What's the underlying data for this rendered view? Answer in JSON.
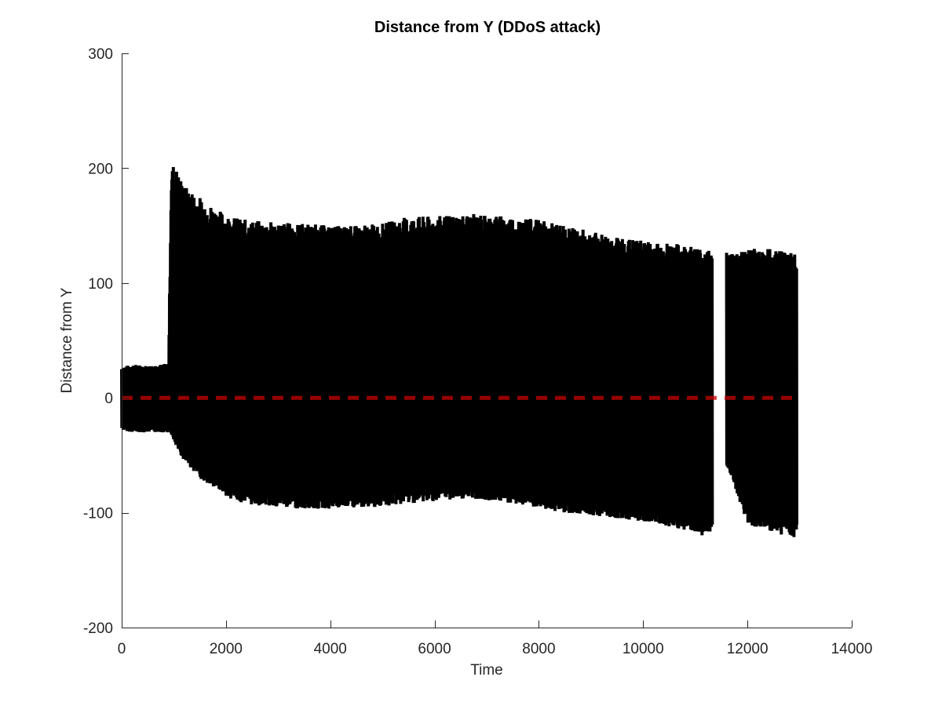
{
  "chart_data": {
    "type": "line",
    "title": "Distance from Y (DDoS attack)",
    "xlabel": "Time",
    "ylabel": "Distance from Y",
    "xlim": [
      0,
      14000
    ],
    "ylim": [
      -200,
      300
    ],
    "xticks": [
      0,
      2000,
      4000,
      6000,
      8000,
      10000,
      12000,
      14000
    ],
    "yticks": [
      -200,
      -100,
      0,
      100,
      200,
      300
    ],
    "xtick_labels": [
      "0",
      "2000",
      "4000",
      "6000",
      "8000",
      "10000",
      "12000",
      "14000"
    ],
    "ytick_labels": [
      "-200",
      "-100",
      "0",
      "100",
      "200",
      "300"
    ],
    "grid": false,
    "series": [
      {
        "style": "solid",
        "color": "#000000",
        "envelope_x": [
          0,
          200,
          500,
          900,
          950,
          1000,
          1200,
          1500,
          1800,
          2100,
          2400,
          3000,
          3500,
          4000,
          4500,
          5000,
          5500,
          6000,
          6500,
          7000,
          7500,
          8000,
          8500,
          9000,
          9500,
          10000,
          10500,
          11000,
          11300,
          11330,
          11600,
          11650,
          12000,
          12500,
          12950
        ],
        "envelope_upper": [
          27,
          29,
          28,
          30,
          200,
          205,
          185,
          175,
          165,
          158,
          155,
          153,
          152,
          150,
          150,
          152,
          158,
          158,
          160,
          160,
          158,
          155,
          150,
          145,
          140,
          137,
          135,
          132,
          128,
          null,
          null,
          127,
          130,
          130,
          126
        ],
        "envelope_lower": [
          -28,
          -30,
          -30,
          -30,
          -32,
          -40,
          -55,
          -70,
          -80,
          -88,
          -93,
          -95,
          -97,
          -97,
          -96,
          -95,
          -92,
          -90,
          -88,
          -89,
          -92,
          -97,
          -100,
          -102,
          -105,
          -108,
          -112,
          -118,
          -122,
          null,
          null,
          -65,
          -110,
          -118,
          -122
        ],
        "gaps": [
          [
            11330,
            11600
          ]
        ]
      },
      {
        "style": "dashed",
        "color": "#cc0000",
        "x": [
          0,
          12950
        ],
        "y": [
          0,
          0
        ]
      }
    ]
  }
}
